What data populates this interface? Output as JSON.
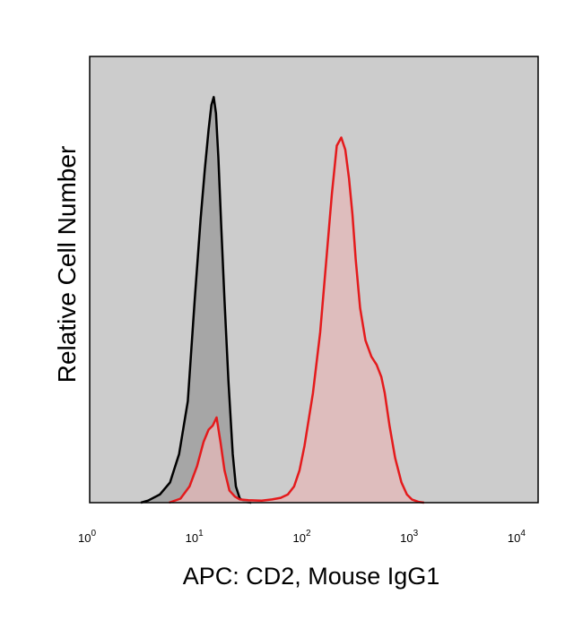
{
  "chart_data": {
    "type": "area",
    "title": "",
    "xlabel": "APC: CD2, Mouse IgG1",
    "ylabel": "Relative Cell Number",
    "x_scale": "log10",
    "xlim": [
      1,
      15000
    ],
    "ylim": [
      0,
      1.1
    ],
    "x_ticks": [
      {
        "base": "10",
        "exp": "0",
        "value": 1
      },
      {
        "base": "10",
        "exp": "1",
        "value": 10
      },
      {
        "base": "10",
        "exp": "2",
        "value": 100
      },
      {
        "base": "10",
        "exp": "3",
        "value": 1000
      },
      {
        "base": "10",
        "exp": "4",
        "value": 10000
      }
    ],
    "grid": false,
    "legend": "none",
    "plot_background": "#cccccc",
    "series": [
      {
        "color": "#000000",
        "fill": "#9a9a9a",
        "x": [
          3.0,
          3.5,
          4.5,
          5.6,
          6.8,
          8.2,
          9.5,
          10.8,
          11.8,
          12.8,
          13.6,
          14.3,
          15.0,
          15.8,
          16.8,
          18.0,
          19.6,
          21.5,
          23.0,
          25.0,
          28.0,
          32.0
        ],
        "y": [
          0.0,
          0.005,
          0.02,
          0.05,
          0.12,
          0.25,
          0.5,
          0.7,
          0.82,
          0.92,
          0.98,
          1.0,
          0.96,
          0.85,
          0.68,
          0.5,
          0.3,
          0.12,
          0.04,
          0.01,
          0.002,
          0.0
        ]
      },
      {
        "color": "#e41a1c",
        "fill": "#e4b8b8",
        "x": [
          5.5,
          7.0,
          8.5,
          10.0,
          11.5,
          12.8,
          14.0,
          15.2,
          16.5,
          18.0,
          20.0,
          22.5,
          25.0,
          30.0,
          40.0,
          50.0,
          60.0,
          70.0,
          80.0,
          90.0,
          100.0,
          120.0,
          140.0,
          160.0,
          180.0,
          200.0,
          220.0,
          240.0,
          260.0,
          280.0,
          300.0,
          330.0,
          370.0,
          420.0,
          470.0,
          520.0,
          560.0,
          620.0,
          700.0,
          800.0,
          900.0,
          1000.0,
          1150.0,
          1300.0
        ],
        "y": [
          0.0,
          0.01,
          0.04,
          0.09,
          0.15,
          0.18,
          0.19,
          0.21,
          0.15,
          0.08,
          0.03,
          0.015,
          0.008,
          0.006,
          0.005,
          0.008,
          0.012,
          0.02,
          0.04,
          0.08,
          0.14,
          0.27,
          0.42,
          0.6,
          0.76,
          0.88,
          0.9,
          0.87,
          0.8,
          0.71,
          0.6,
          0.48,
          0.4,
          0.36,
          0.34,
          0.31,
          0.27,
          0.19,
          0.11,
          0.05,
          0.02,
          0.008,
          0.002,
          0.0
        ]
      }
    ]
  }
}
